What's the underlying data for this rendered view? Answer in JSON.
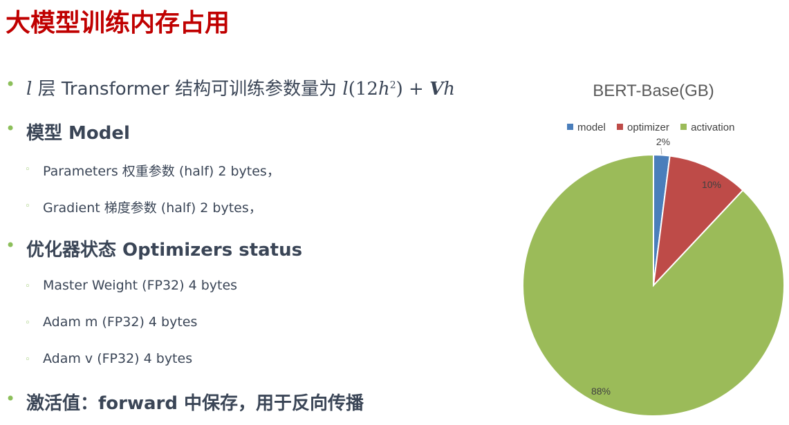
{
  "slide": {
    "title": "大模型训练内存占用"
  },
  "bullets": {
    "b1": {
      "prefix_var": "l",
      "text": " 层 Transformer 结构可训练参数量为 ",
      "formula_l": "l",
      "formula_open": "(12",
      "formula_h": "h",
      "formula_exp": "2",
      "formula_close": ") + ",
      "formula_V": "V",
      "formula_h2": "h"
    },
    "b2": {
      "text": "模型 Model"
    },
    "b2_1": {
      "text": "Parameters 权重参数 (half) 2 bytes，"
    },
    "b2_2": {
      "text": "Gradient 梯度参数 (half) 2 bytes，"
    },
    "b3": {
      "text": "优化器状态 Optimizers status"
    },
    "b3_1": {
      "text": "Master Weight (FP32) 4 bytes"
    },
    "b3_2": {
      "text": "Adam m (FP32) 4 bytes"
    },
    "b3_3": {
      "text": "Adam v (FP32) 4 bytes"
    },
    "b4": {
      "text": "激活值：forward 中保存，用于反向传播"
    },
    "bullet_glyph": "•",
    "sub_glyph": "◦"
  },
  "chart_data": {
    "type": "pie",
    "title": "BERT-Base(GB)",
    "categories": [
      "model",
      "optimizer",
      "activation"
    ],
    "values": [
      2,
      10,
      88
    ],
    "data_labels": [
      "2%",
      "10%",
      "88%"
    ],
    "colors": [
      "#4a7ebb",
      "#be4b48",
      "#9bbb59"
    ],
    "legend_position": "top"
  }
}
